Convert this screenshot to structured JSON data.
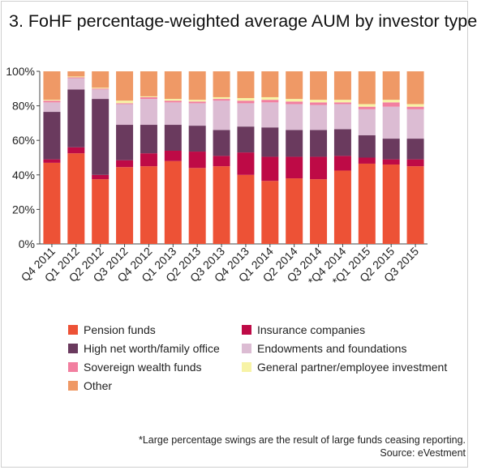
{
  "title": "3. FoHF percentage-weighted average AUM by investor type",
  "footnote": "*Large percentage swings are the result of large funds ceasing reporting.",
  "source": "Source: eVestment",
  "chart_data": {
    "type": "bar",
    "stacked": true,
    "percent": true,
    "ylim": [
      0,
      100
    ],
    "yticks": [
      "0%",
      "20%",
      "40%",
      "60%",
      "80%",
      "100%"
    ],
    "grid": false,
    "legend_position": "bottom",
    "categories": [
      "Q4 2011",
      "Q1 2012",
      "Q2 2012",
      "Q3 2012",
      "Q4 2012",
      "Q1 2013",
      "Q2 2013",
      "Q3 2013",
      "Q4 2013",
      "Q1 2014",
      "Q2 2014",
      "Q3 2014",
      "*Q4 2014",
      "*Q1 2015",
      "Q2 2015",
      "Q3 2015"
    ],
    "series": [
      {
        "name": "Pension funds",
        "color": "#ed5236",
        "values": [
          47,
          52.5,
          37.5,
          44.5,
          45,
          48,
          44,
          45,
          40,
          36.5,
          38,
          37.5,
          42.5,
          46.5,
          46,
          45
        ]
      },
      {
        "name": "Insurance companies",
        "color": "#be0a46",
        "values": [
          2,
          3.5,
          2.5,
          4,
          7.5,
          6,
          9.5,
          6,
          13,
          14,
          12.5,
          13,
          8.5,
          3.5,
          3,
          4
        ]
      },
      {
        "name": "High net worth/family office",
        "color": "#6a3a5e",
        "values": [
          27.5,
          33.5,
          44,
          20.5,
          16.5,
          15,
          15,
          15,
          15,
          17,
          15.5,
          15.5,
          15.5,
          13,
          12,
          12
        ]
      },
      {
        "name": "Endowments and foundations",
        "color": "#dcbcd3",
        "values": [
          5.5,
          6.5,
          5.5,
          12,
          15,
          13,
          13,
          17,
          13.5,
          14.5,
          15,
          14.5,
          14.5,
          15,
          18.5,
          17
        ]
      },
      {
        "name": "Sovereign wealth funds",
        "color": "#f27fa0",
        "values": [
          1,
          0.5,
          0.5,
          0.5,
          1,
          1,
          1,
          1,
          1.5,
          1.5,
          1.5,
          1.5,
          1,
          1.5,
          2.5,
          1.5
        ]
      },
      {
        "name": "General partner/employee investment",
        "color": "#f7f3a6",
        "values": [
          0.5,
          0.5,
          0.5,
          1.5,
          0.5,
          1,
          1,
          1,
          1.5,
          1.5,
          1.5,
          1.5,
          1.5,
          1.5,
          1.5,
          1.5
        ]
      },
      {
        "name": "Other",
        "color": "#ef9966",
        "values": [
          16.5,
          3,
          9.5,
          17,
          14.5,
          16,
          16.5,
          15,
          15.5,
          15,
          16,
          16.5,
          16.5,
          19,
          16.5,
          19
        ]
      }
    ]
  }
}
